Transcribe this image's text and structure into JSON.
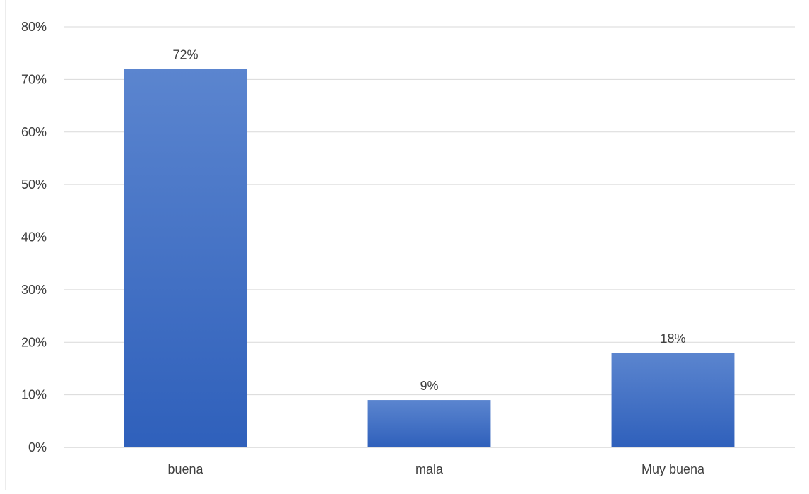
{
  "chart_data": {
    "type": "bar",
    "categories": [
      "buena",
      "mala",
      "Muy buena"
    ],
    "values": [
      72,
      9,
      18
    ],
    "value_unit": "%",
    "data_labels": [
      "72%",
      "9%",
      "18%"
    ],
    "ylim": [
      0,
      80
    ],
    "y_ticks": [
      "0%",
      "10%",
      "20%",
      "30%",
      "40%",
      "50%",
      "60%",
      "70%",
      "80%"
    ],
    "grid": true,
    "legend": "none",
    "colors": {
      "bar_top": "#5b85cf",
      "bar_bottom": "#2f60bb",
      "grid": "#d9d9d9",
      "text": "#404040"
    }
  }
}
